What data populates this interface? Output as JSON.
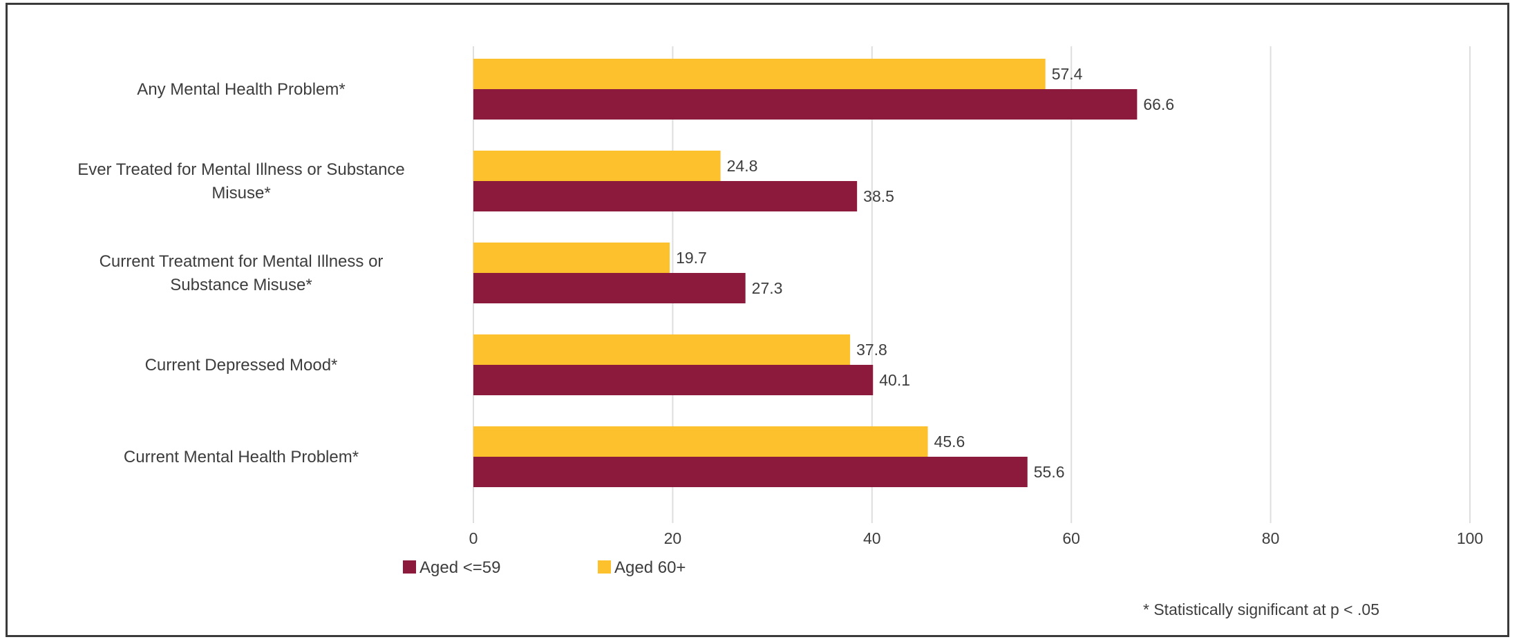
{
  "chart_data": {
    "type": "bar",
    "orientation": "horizontal",
    "categories": [
      [
        "Any Mental Health Problem*"
      ],
      [
        "Ever Treated for Mental Illness or Substance",
        "Misuse*"
      ],
      [
        "Current Treatment for Mental Illness or",
        "Substance Misuse*"
      ],
      [
        "Current Depressed Mood*"
      ],
      [
        "Current Mental Health Problem*"
      ]
    ],
    "series": [
      {
        "name": "Aged 60+",
        "color": "#fcc12d",
        "values": [
          57.4,
          24.8,
          19.7,
          37.8,
          45.6
        ],
        "labels": [
          "57.4",
          "24.8",
          "19.7",
          "37.8",
          "45.6"
        ]
      },
      {
        "name": "Aged <=59",
        "color": "#8b1a3d",
        "values": [
          66.6,
          38.5,
          27.3,
          40.1,
          55.6
        ],
        "labels": [
          "66.6",
          "38.5",
          "27.3",
          "40.1",
          "55.6"
        ]
      }
    ],
    "xlim": [
      0,
      100
    ],
    "xticks": [
      "0",
      "20",
      "40",
      "60",
      "80",
      "100"
    ],
    "grid": true,
    "legend": {
      "placement": "bottom-left",
      "entries": [
        {
          "name": "Aged <=59",
          "color": "#8b1a3d"
        },
        {
          "name": "Aged 60+",
          "color": "#fcc12d"
        }
      ]
    },
    "footnote": "* Statistically significant at p < .05"
  }
}
